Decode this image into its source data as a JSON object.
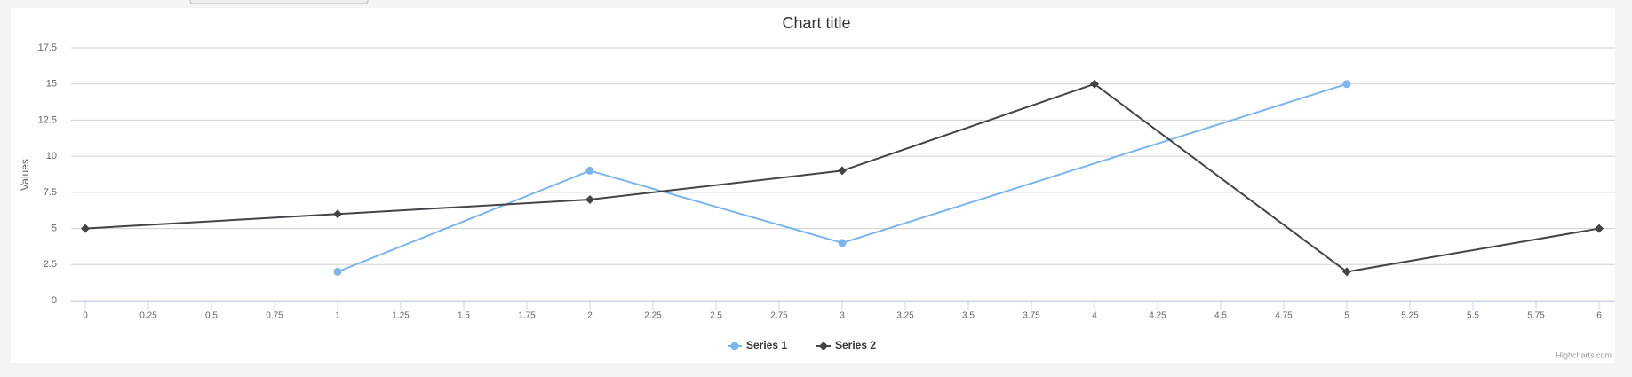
{
  "chart_data": {
    "type": "line",
    "title": "Chart title",
    "y_label": "Values",
    "series": [
      {
        "name": "Series 1",
        "color": "#7cb5ec",
        "marker": "circle",
        "x": [
          1,
          2,
          3,
          5
        ],
        "values": [
          2,
          9,
          4,
          15
        ]
      },
      {
        "name": "Series 2",
        "color": "#434348",
        "marker": "diamond",
        "x": [
          0,
          1,
          2,
          3,
          4,
          5,
          6
        ],
        "values": [
          5,
          6,
          7,
          9,
          15,
          2,
          5
        ]
      }
    ],
    "xlim": [
      0,
      6
    ],
    "xticks": [
      0,
      0.25,
      0.5,
      0.75,
      1,
      1.25,
      1.5,
      1.75,
      2,
      2.25,
      2.5,
      2.75,
      3,
      3.25,
      3.5,
      3.75,
      4,
      4.25,
      4.5,
      4.75,
      5,
      5.25,
      5.5,
      5.75,
      6
    ],
    "ylim": [
      0,
      17.5
    ],
    "yticks": [
      0,
      2.5,
      5,
      7.5,
      10,
      12.5,
      15,
      17.5
    ],
    "grid": true,
    "legend": "bottom",
    "credits": "Highcharts.com"
  }
}
